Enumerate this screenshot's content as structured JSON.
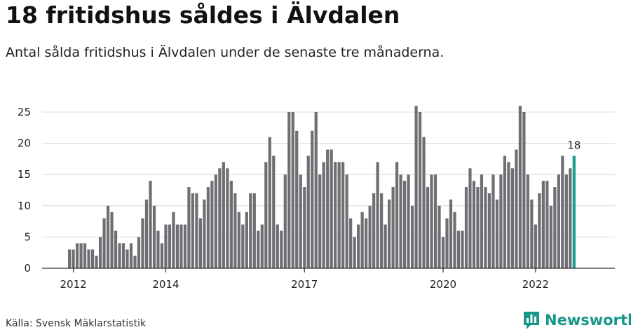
{
  "header": {
    "title": "18 fritidshus såldes i Älvdalen",
    "subtitle": "Antal sålda fritidshus i Älvdalen under de senaste tre månaderna."
  },
  "footer": {
    "source": "Källa: Svensk Mäklarstatistik",
    "brand": "Newsworthy",
    "brand_icon": "newsworthy-logo-icon"
  },
  "colors": {
    "bar": "#6e6e73",
    "highlight": "#1a9e91",
    "brand": "#17968a"
  },
  "chart_data": {
    "type": "bar",
    "title": "18 fritidshus såldes i Älvdalen",
    "subtitle": "Antal sålda fritidshus i Älvdalen under de senaste tre månaderna.",
    "xlabel": "",
    "ylabel": "",
    "ylim": [
      0,
      27
    ],
    "yticks": [
      0,
      5,
      10,
      15,
      20,
      25
    ],
    "grid": true,
    "xticks": [
      {
        "label": "2012",
        "index": 1
      },
      {
        "label": "2014",
        "index": 25
      },
      {
        "label": "2017",
        "index": 61
      },
      {
        "label": "2020",
        "index": 97
      },
      {
        "label": "2022",
        "index": 121
      }
    ],
    "highlight_label": "18",
    "values": [
      3,
      3,
      4,
      4,
      4,
      3,
      3,
      2,
      5,
      8,
      10,
      9,
      6,
      4,
      4,
      3,
      4,
      2,
      5,
      8,
      11,
      14,
      10,
      6,
      4,
      7,
      7,
      9,
      7,
      7,
      7,
      13,
      12,
      12,
      8,
      11,
      13,
      14,
      15,
      16,
      17,
      16,
      14,
      12,
      9,
      7,
      9,
      12,
      12,
      6,
      7,
      17,
      21,
      18,
      7,
      6,
      15,
      25,
      25,
      22,
      15,
      13,
      18,
      22,
      25,
      15,
      17,
      19,
      19,
      17,
      17,
      17,
      15,
      8,
      5,
      7,
      9,
      8,
      10,
      12,
      17,
      12,
      7,
      11,
      13,
      17,
      15,
      14,
      15,
      10,
      26,
      25,
      21,
      13,
      15,
      15,
      10,
      5,
      8,
      11,
      9,
      6,
      6,
      13,
      16,
      14,
      13,
      15,
      13,
      12,
      15,
      11,
      15,
      18,
      17,
      16,
      19,
      26,
      25,
      15,
      11,
      7,
      12,
      14,
      14,
      10,
      13,
      15,
      18,
      15,
      16,
      18
    ]
  }
}
